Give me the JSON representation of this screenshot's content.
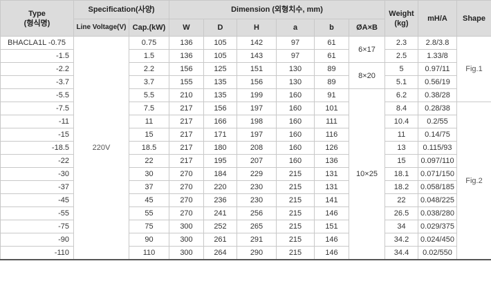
{
  "headers": {
    "type": "Type",
    "type_ko": "(형식명)",
    "specification": "Specification(사양)",
    "line_voltage": "Line Voltage(V)",
    "cap": "Cap.(kW)",
    "dimension": "Dimension (외형치수, mm)",
    "w": "W",
    "d": "D",
    "h": "H",
    "a": "a",
    "b": "b",
    "axb": "ØA×B",
    "weight": "Weight",
    "weight_unit": "(kg)",
    "mha": "mH/A",
    "shape": "Shape"
  },
  "merged": {
    "line_voltage_value": "220V",
    "axb_group1": "6×17",
    "axb_group2": "8×20",
    "axb_group3": "10×25",
    "shape_group1": "Fig.1",
    "shape_group2": "Fig.2"
  },
  "rows": [
    {
      "type": "BHACLA1L  -0.75",
      "cap": "0.75",
      "w": "136",
      "d": "105",
      "h": "142",
      "a": "97",
      "b": "61",
      "weight": "2.3",
      "mha": "2.8/3.8"
    },
    {
      "type": "-1.5",
      "cap": "1.5",
      "w": "136",
      "d": "105",
      "h": "143",
      "a": "97",
      "b": "61",
      "weight": "2.5",
      "mha": "1.33/8"
    },
    {
      "type": "-2.2",
      "cap": "2.2",
      "w": "156",
      "d": "125",
      "h": "151",
      "a": "130",
      "b": "89",
      "weight": "5",
      "mha": "0.97/11"
    },
    {
      "type": "-3.7",
      "cap": "3.7",
      "w": "155",
      "d": "135",
      "h": "156",
      "a": "130",
      "b": "89",
      "weight": "5.1",
      "mha": "0.56/19"
    },
    {
      "type": "-5.5",
      "cap": "5.5",
      "w": "210",
      "d": "135",
      "h": "199",
      "a": "160",
      "b": "91",
      "weight": "6.2",
      "mha": "0.38/28"
    },
    {
      "type": "-7.5",
      "cap": "7.5",
      "w": "217",
      "d": "156",
      "h": "197",
      "a": "160",
      "b": "101",
      "weight": "8.4",
      "mha": "0.28/38"
    },
    {
      "type": "-11",
      "cap": "11",
      "w": "217",
      "d": "166",
      "h": "198",
      "a": "160",
      "b": "111",
      "weight": "10.4",
      "mha": "0.2/55"
    },
    {
      "type": "-15",
      "cap": "15",
      "w": "217",
      "d": "171",
      "h": "197",
      "a": "160",
      "b": "116",
      "weight": "11",
      "mha": "0.14/75"
    },
    {
      "type": "-18.5",
      "cap": "18.5",
      "w": "217",
      "d": "180",
      "h": "208",
      "a": "160",
      "b": "126",
      "weight": "13",
      "mha": "0.115/93"
    },
    {
      "type": "-22",
      "cap": "22",
      "w": "217",
      "d": "195",
      "h": "207",
      "a": "160",
      "b": "136",
      "weight": "15",
      "mha": "0.097/110"
    },
    {
      "type": "-30",
      "cap": "30",
      "w": "270",
      "d": "184",
      "h": "229",
      "a": "215",
      "b": "131",
      "weight": "18.1",
      "mha": "0.071/150"
    },
    {
      "type": "-37",
      "cap": "37",
      "w": "270",
      "d": "220",
      "h": "230",
      "a": "215",
      "b": "131",
      "weight": "18.2",
      "mha": "0.058/185"
    },
    {
      "type": "-45",
      "cap": "45",
      "w": "270",
      "d": "236",
      "h": "230",
      "a": "215",
      "b": "141",
      "weight": "22",
      "mha": "0.048/225"
    },
    {
      "type": "-55",
      "cap": "55",
      "w": "270",
      "d": "241",
      "h": "256",
      "a": "215",
      "b": "146",
      "weight": "26.5",
      "mha": "0.038/280"
    },
    {
      "type": "-75",
      "cap": "75",
      "w": "300",
      "d": "252",
      "h": "265",
      "a": "215",
      "b": "151",
      "weight": "34",
      "mha": "0.029/375"
    },
    {
      "type": "-90",
      "cap": "90",
      "w": "300",
      "d": "261",
      "h": "291",
      "a": "215",
      "b": "146",
      "weight": "34.2",
      "mha": "0.024/450"
    },
    {
      "type": "-110",
      "cap": "110",
      "w": "300",
      "d": "264",
      "h": "290",
      "a": "215",
      "b": "146",
      "weight": "34.4",
      "mha": "0.02/550"
    }
  ]
}
